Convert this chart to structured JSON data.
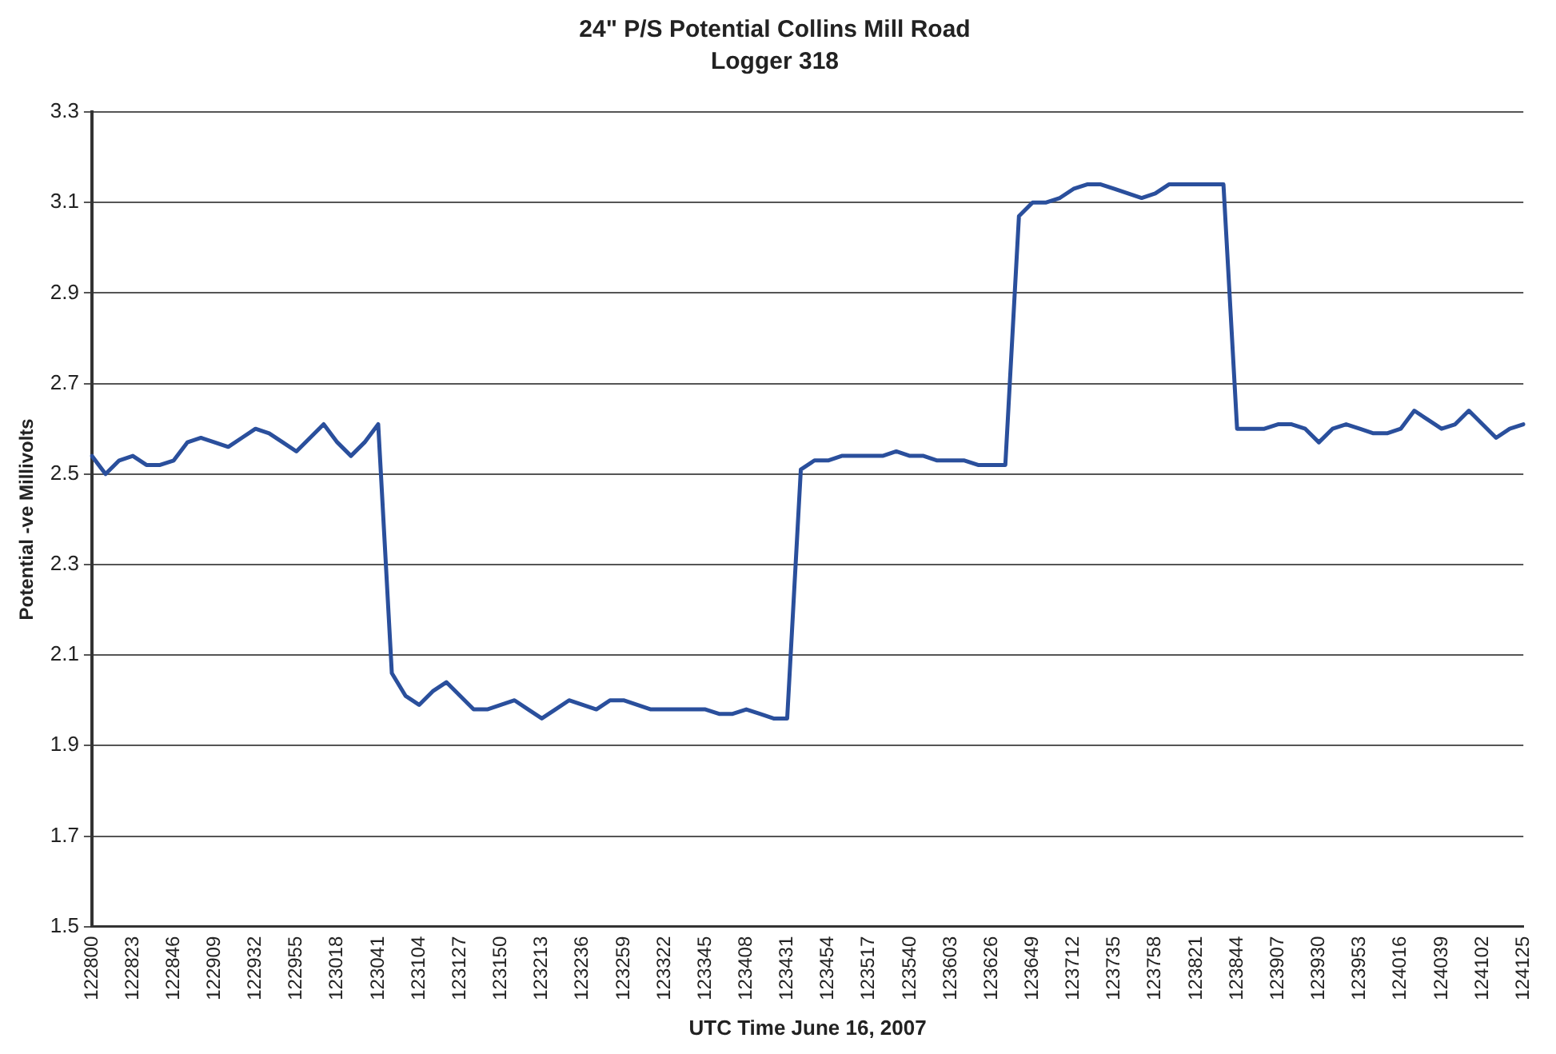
{
  "chart_data": {
    "type": "line",
    "title": "24\" P/S Potential Collins Mill Road",
    "subtitle": "Logger 318",
    "xlabel": "UTC Time June 16, 2007",
    "ylabel": "Potential -ve Millivolts",
    "categories": [
      "122800",
      null,
      null,
      "122823",
      null,
      null,
      "122846",
      null,
      null,
      "122909",
      null,
      null,
      "122932",
      null,
      null,
      "122955",
      null,
      null,
      "123018",
      null,
      null,
      "123041",
      null,
      null,
      "123104",
      null,
      null,
      "123127",
      null,
      null,
      "123150",
      null,
      null,
      "123213",
      null,
      null,
      "123236",
      null,
      null,
      "123259",
      null,
      null,
      "123322",
      null,
      null,
      "123345",
      null,
      null,
      "123408",
      null,
      null,
      "123431",
      null,
      null,
      "123454",
      null,
      null,
      "123517",
      null,
      null,
      "123540",
      null,
      null,
      "123603",
      null,
      null,
      "123626",
      null,
      null,
      "123649",
      null,
      null,
      "123712",
      null,
      null,
      "123735",
      null,
      null,
      "123758",
      null,
      null,
      "123821",
      null,
      null,
      "123844",
      null,
      null,
      "123907",
      null,
      null,
      "123930",
      null,
      null,
      "123953",
      null,
      null,
      "124016",
      null,
      null,
      "124039",
      null,
      null,
      "124102",
      null,
      null,
      "124125"
    ],
    "series": [
      {
        "color": "#2a4f9c",
        "values": [
          2.54,
          2.5,
          2.53,
          2.54,
          2.52,
          2.52,
          2.53,
          2.57,
          2.58,
          2.57,
          2.56,
          2.58,
          2.6,
          2.59,
          2.57,
          2.55,
          2.58,
          2.61,
          2.57,
          2.54,
          2.57,
          2.61,
          2.06,
          2.01,
          1.99,
          2.02,
          2.04,
          2.01,
          1.98,
          1.98,
          1.99,
          2.0,
          1.98,
          1.96,
          1.98,
          2.0,
          1.99,
          1.98,
          2.0,
          2.0,
          1.99,
          1.98,
          1.98,
          1.98,
          1.98,
          1.98,
          1.97,
          1.97,
          1.98,
          1.97,
          1.96,
          1.96,
          2.51,
          2.53,
          2.53,
          2.54,
          2.54,
          2.54,
          2.54,
          2.55,
          2.54,
          2.54,
          2.53,
          2.53,
          2.53,
          2.52,
          2.52,
          2.52,
          3.07,
          3.1,
          3.1,
          3.11,
          3.13,
          3.14,
          3.14,
          3.13,
          3.12,
          3.11,
          3.12,
          3.14,
          3.14,
          3.14,
          3.14,
          3.14,
          2.6,
          2.6,
          2.6,
          2.61,
          2.61,
          2.6,
          2.57,
          2.6,
          2.61,
          2.6,
          2.59,
          2.59,
          2.6,
          2.64,
          2.62,
          2.6,
          2.61,
          2.64,
          2.61,
          2.58,
          2.6,
          2.61
        ]
      }
    ],
    "ylim": [
      1.5,
      3.3
    ],
    "yticks": [
      1.5,
      1.7,
      1.9,
      2.1,
      2.3,
      2.5,
      2.7,
      2.9,
      3.1,
      3.3
    ],
    "grid": "y",
    "legend": false,
    "marker": "none",
    "line_style": "solid"
  }
}
